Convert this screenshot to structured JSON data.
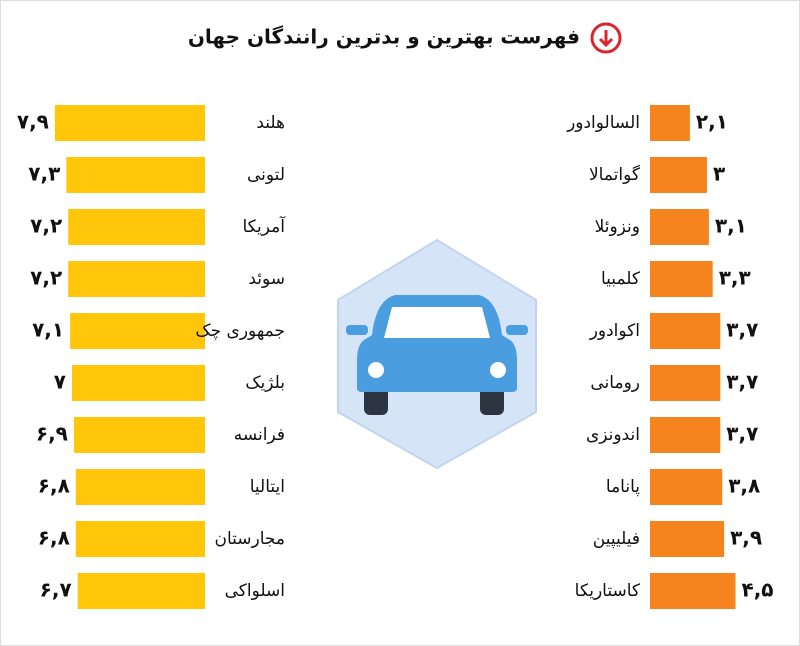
{
  "chart_data": [
    {
      "type": "bar",
      "orientation": "horizontal",
      "side": "left",
      "title": "فهرست بهترین و بدترین رانندگان جهان",
      "categories": [
        "هلند",
        "لتونی",
        "آمریکا",
        "سوئد",
        "جمهوری چک",
        "بلژیک",
        "فرانسه",
        "ایتالیا",
        "مجارستان",
        "اسلواکی"
      ],
      "values": [
        7.9,
        7.3,
        7.2,
        7.2,
        7.1,
        7,
        6.9,
        6.8,
        6.8,
        6.7
      ],
      "value_labels": [
        "۷,۹",
        "۷,۳",
        "۷,۲",
        "۷,۲",
        "۷,۱",
        "۷",
        "۶,۹",
        "۶,۸",
        "۶,۸",
        "۶,۷"
      ],
      "color": "#ffc60a"
    },
    {
      "type": "bar",
      "orientation": "horizontal",
      "side": "right",
      "categories": [
        "السالوادور",
        "گواتمالا",
        "ونزوئلا",
        "کلمبیا",
        "اکوادور",
        "رومانی",
        "اندونزی",
        "پاناما",
        "فیلیپین",
        "کاستاریکا"
      ],
      "values": [
        2.1,
        3,
        3.1,
        3.3,
        3.7,
        3.7,
        3.7,
        3.8,
        3.9,
        4.5
      ],
      "value_labels": [
        "۲,۱",
        "۳",
        "۳,۱",
        "۳,۳",
        "۳,۷",
        "۳,۷",
        "۳,۷",
        "۳,۸",
        "۳,۹",
        "۴,۵"
      ],
      "color": "#f5841f"
    }
  ]
}
